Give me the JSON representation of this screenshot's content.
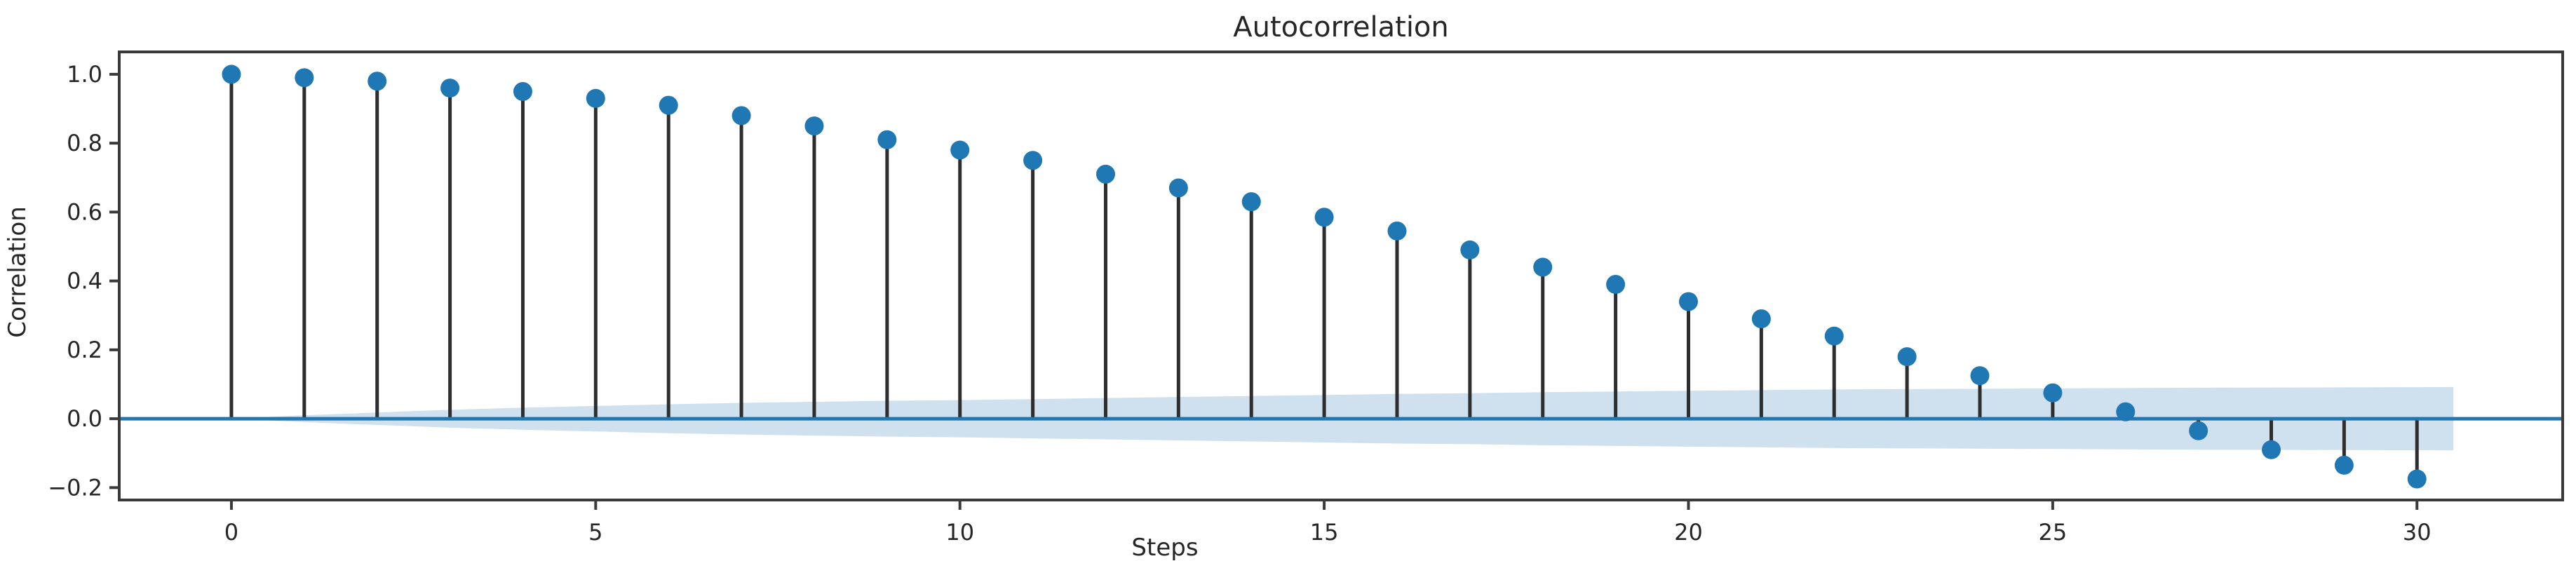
{
  "title": "Autocorrelation",
  "colors": {
    "accent_blue": "#1f77b4",
    "band_fill": "#cfe0ef",
    "stem": "#2e2e2e",
    "frame": "#3a3a3a",
    "text": "#262626",
    "background": "#ffffff"
  },
  "chart_data": {
    "type": "stem",
    "title": "Autocorrelation",
    "xlabel": "Steps",
    "ylabel": "Correlation",
    "legend": "none",
    "grid": false,
    "x": [
      0,
      1,
      2,
      3,
      4,
      5,
      6,
      7,
      8,
      9,
      10,
      11,
      12,
      13,
      14,
      15,
      16,
      17,
      18,
      19,
      20,
      21,
      22,
      23,
      24,
      25,
      26,
      27,
      28,
      29,
      30
    ],
    "values": [
      1.0,
      0.99,
      0.98,
      0.96,
      0.95,
      0.93,
      0.91,
      0.88,
      0.85,
      0.81,
      0.78,
      0.75,
      0.71,
      0.67,
      0.63,
      0.585,
      0.545,
      0.49,
      0.44,
      0.39,
      0.34,
      0.29,
      0.24,
      0.18,
      0.125,
      0.075,
      0.02,
      -0.035,
      -0.09,
      -0.135,
      -0.175
    ],
    "zero_line": 0.0,
    "xticks": [
      0,
      5,
      10,
      15,
      20,
      25,
      30
    ],
    "xtick_labels": [
      "0",
      "5",
      "10",
      "15",
      "20",
      "25",
      "30"
    ],
    "yticks": [
      1.0,
      0.8,
      0.6,
      0.4,
      0.2,
      0.0,
      -0.2
    ],
    "ytick_labels": [
      "1.0",
      "0.8",
      "0.6",
      "0.4",
      "0.2",
      "0.0",
      "−0.2"
    ],
    "xlim": [
      -1.54,
      32.0
    ],
    "ylim": [
      -0.236,
      1.065
    ],
    "confidence_band": {
      "x": [
        0.5,
        1,
        2,
        3,
        4,
        5,
        6,
        7,
        8,
        9,
        10,
        11,
        12,
        13,
        14,
        15,
        16,
        17,
        18,
        19,
        20,
        21,
        22,
        23,
        24,
        25,
        26,
        27,
        28,
        29,
        30,
        30.5
      ],
      "half_width": [
        0.005,
        0.01,
        0.018,
        0.026,
        0.032,
        0.037,
        0.042,
        0.046,
        0.049,
        0.052,
        0.054,
        0.057,
        0.06,
        0.063,
        0.066,
        0.069,
        0.072,
        0.074,
        0.077,
        0.079,
        0.081,
        0.083,
        0.085,
        0.086,
        0.087,
        0.088,
        0.089,
        0.09,
        0.0905,
        0.091,
        0.0915,
        0.092
      ]
    }
  }
}
